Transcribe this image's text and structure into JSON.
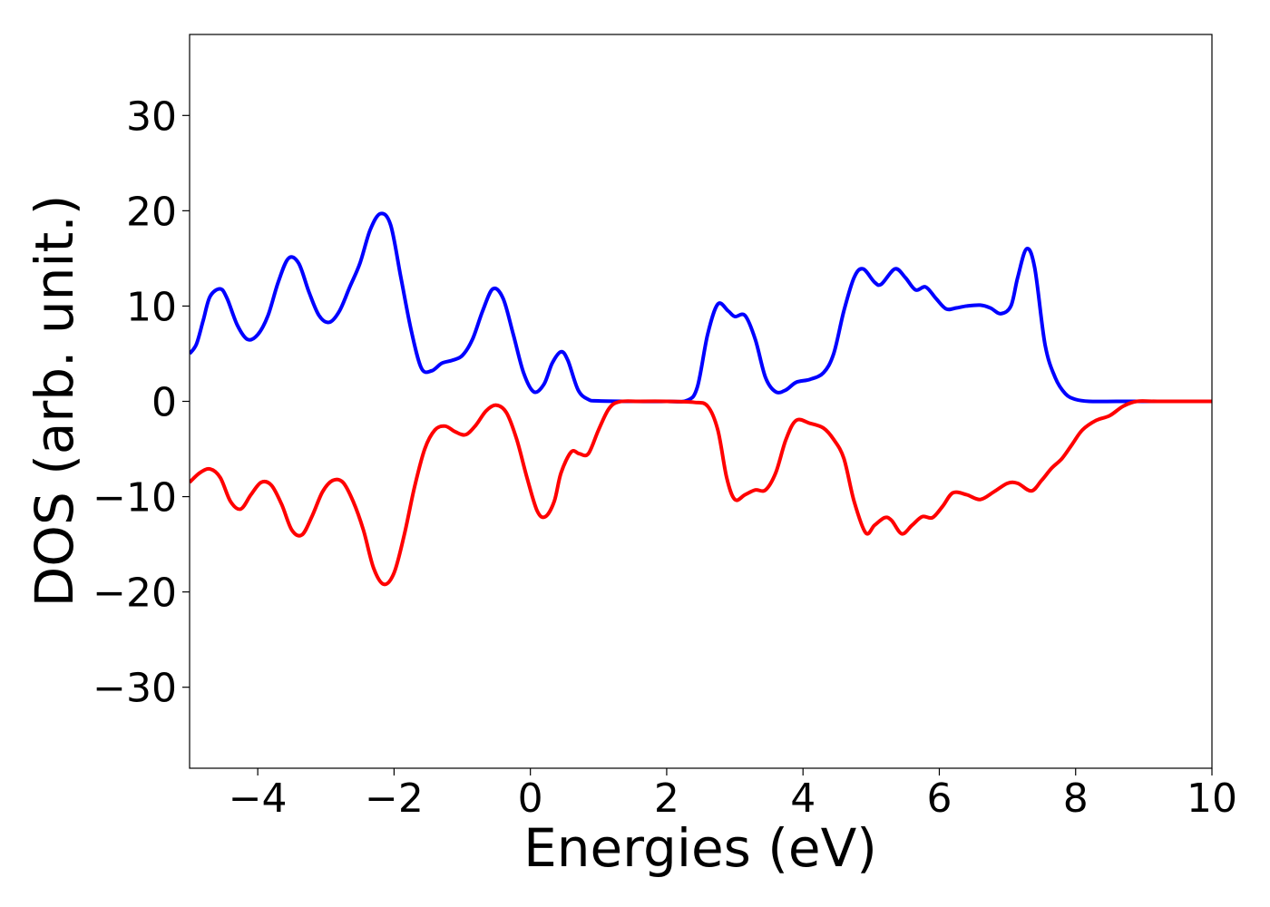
{
  "chart_data": {
    "type": "line",
    "title": "",
    "xlabel": "Energies (eV)",
    "ylabel": "DOS (arb. unit.)",
    "xlim": [
      -5,
      10
    ],
    "ylim": [
      -38.5,
      38.5
    ],
    "xticks": [
      -4,
      -2,
      0,
      2,
      4,
      6,
      8,
      10
    ],
    "xtick_labels": [
      "−4",
      "−2",
      "0",
      "2",
      "4",
      "6",
      "8",
      "10"
    ],
    "yticks": [
      -30,
      -20,
      -10,
      0,
      10,
      20,
      30
    ],
    "ytick_labels": [
      "−30",
      "−20",
      "−10",
      "0",
      "10",
      "20",
      "30"
    ],
    "grid": false,
    "legend": "none",
    "series": [
      {
        "color": "#0000ff",
        "points": [
          [
            -5.0,
            5.0
          ],
          [
            -4.9,
            6.0
          ],
          [
            -4.8,
            8.5
          ],
          [
            -4.7,
            11.0
          ],
          [
            -4.55,
            11.8
          ],
          [
            -4.45,
            10.8
          ],
          [
            -4.3,
            8.0
          ],
          [
            -4.15,
            6.5
          ],
          [
            -4.0,
            7.0
          ],
          [
            -3.85,
            9.0
          ],
          [
            -3.7,
            12.5
          ],
          [
            -3.55,
            15.0
          ],
          [
            -3.4,
            14.5
          ],
          [
            -3.25,
            11.5
          ],
          [
            -3.1,
            9.0
          ],
          [
            -2.95,
            8.3
          ],
          [
            -2.8,
            9.5
          ],
          [
            -2.65,
            12.0
          ],
          [
            -2.5,
            14.5
          ],
          [
            -2.35,
            18.0
          ],
          [
            -2.2,
            19.7
          ],
          [
            -2.05,
            18.5
          ],
          [
            -1.9,
            13.0
          ],
          [
            -1.75,
            7.5
          ],
          [
            -1.6,
            3.5
          ],
          [
            -1.45,
            3.2
          ],
          [
            -1.3,
            4.0
          ],
          [
            -1.15,
            4.3
          ],
          [
            -1.0,
            4.8
          ],
          [
            -0.85,
            6.5
          ],
          [
            -0.7,
            9.5
          ],
          [
            -0.55,
            11.8
          ],
          [
            -0.4,
            10.8
          ],
          [
            -0.25,
            7.0
          ],
          [
            -0.1,
            3.0
          ],
          [
            0.05,
            1.0
          ],
          [
            0.2,
            1.8
          ],
          [
            0.32,
            4.0
          ],
          [
            0.45,
            5.2
          ],
          [
            0.55,
            4.3
          ],
          [
            0.7,
            1.2
          ],
          [
            0.85,
            0.2
          ],
          [
            1.0,
            0.05
          ],
          [
            1.5,
            0.0
          ],
          [
            2.0,
            0.0
          ],
          [
            2.3,
            0.1
          ],
          [
            2.45,
            1.5
          ],
          [
            2.6,
            7.0
          ],
          [
            2.75,
            10.2
          ],
          [
            2.9,
            9.5
          ],
          [
            3.0,
            8.9
          ],
          [
            3.15,
            9.0
          ],
          [
            3.3,
            6.5
          ],
          [
            3.45,
            2.5
          ],
          [
            3.6,
            1.0
          ],
          [
            3.75,
            1.2
          ],
          [
            3.9,
            2.0
          ],
          [
            4.1,
            2.3
          ],
          [
            4.3,
            3.0
          ],
          [
            4.45,
            5.0
          ],
          [
            4.6,
            9.5
          ],
          [
            4.75,
            13.0
          ],
          [
            4.88,
            13.9
          ],
          [
            5.05,
            12.5
          ],
          [
            5.15,
            12.3
          ],
          [
            5.35,
            13.9
          ],
          [
            5.5,
            13.0
          ],
          [
            5.65,
            11.7
          ],
          [
            5.8,
            12.0
          ],
          [
            5.95,
            10.8
          ],
          [
            6.1,
            9.7
          ],
          [
            6.25,
            9.8
          ],
          [
            6.4,
            10.0
          ],
          [
            6.6,
            10.1
          ],
          [
            6.75,
            9.8
          ],
          [
            6.9,
            9.2
          ],
          [
            7.05,
            10.0
          ],
          [
            7.15,
            13.0
          ],
          [
            7.28,
            16.0
          ],
          [
            7.4,
            14.0
          ],
          [
            7.55,
            6.0
          ],
          [
            7.7,
            2.5
          ],
          [
            7.85,
            0.8
          ],
          [
            8.0,
            0.2
          ],
          [
            8.2,
            0.0
          ],
          [
            8.6,
            0.0
          ],
          [
            9.0,
            0.0
          ],
          [
            10.0,
            0.0
          ]
        ]
      },
      {
        "color": "#ff0000",
        "points": [
          [
            -5.0,
            -8.5
          ],
          [
            -4.85,
            -7.5
          ],
          [
            -4.7,
            -7.1
          ],
          [
            -4.55,
            -8.0
          ],
          [
            -4.4,
            -10.5
          ],
          [
            -4.25,
            -11.3
          ],
          [
            -4.1,
            -9.8
          ],
          [
            -3.95,
            -8.5
          ],
          [
            -3.8,
            -8.8
          ],
          [
            -3.65,
            -10.8
          ],
          [
            -3.5,
            -13.5
          ],
          [
            -3.35,
            -14.0
          ],
          [
            -3.2,
            -12.0
          ],
          [
            -3.05,
            -9.5
          ],
          [
            -2.9,
            -8.3
          ],
          [
            -2.75,
            -8.5
          ],
          [
            -2.6,
            -10.5
          ],
          [
            -2.45,
            -13.5
          ],
          [
            -2.3,
            -17.5
          ],
          [
            -2.15,
            -19.2
          ],
          [
            -2.0,
            -18.0
          ],
          [
            -1.85,
            -14.0
          ],
          [
            -1.7,
            -9.0
          ],
          [
            -1.55,
            -5.0
          ],
          [
            -1.4,
            -3.0
          ],
          [
            -1.25,
            -2.6
          ],
          [
            -1.1,
            -3.2
          ],
          [
            -0.95,
            -3.5
          ],
          [
            -0.8,
            -2.5
          ],
          [
            -0.65,
            -1.0
          ],
          [
            -0.5,
            -0.4
          ],
          [
            -0.35,
            -1.2
          ],
          [
            -0.2,
            -4.0
          ],
          [
            -0.05,
            -8.0
          ],
          [
            0.1,
            -11.5
          ],
          [
            0.22,
            -12.1
          ],
          [
            0.35,
            -10.5
          ],
          [
            0.45,
            -7.5
          ],
          [
            0.6,
            -5.3
          ],
          [
            0.72,
            -5.5
          ],
          [
            0.85,
            -5.5
          ],
          [
            1.0,
            -3.0
          ],
          [
            1.15,
            -0.8
          ],
          [
            1.3,
            -0.05
          ],
          [
            1.6,
            0.0
          ],
          [
            2.0,
            0.0
          ],
          [
            2.4,
            -0.1
          ],
          [
            2.6,
            -0.5
          ],
          [
            2.75,
            -3.0
          ],
          [
            2.88,
            -8.0
          ],
          [
            3.0,
            -10.3
          ],
          [
            3.15,
            -9.8
          ],
          [
            3.3,
            -9.3
          ],
          [
            3.45,
            -9.3
          ],
          [
            3.6,
            -7.5
          ],
          [
            3.75,
            -4.0
          ],
          [
            3.9,
            -2.0
          ],
          [
            4.1,
            -2.3
          ],
          [
            4.3,
            -2.8
          ],
          [
            4.45,
            -4.0
          ],
          [
            4.6,
            -6.0
          ],
          [
            4.75,
            -10.5
          ],
          [
            4.92,
            -13.8
          ],
          [
            5.05,
            -13.0
          ],
          [
            5.2,
            -12.2
          ],
          [
            5.3,
            -12.5
          ],
          [
            5.45,
            -13.9
          ],
          [
            5.6,
            -13.0
          ],
          [
            5.75,
            -12.1
          ],
          [
            5.9,
            -12.2
          ],
          [
            6.05,
            -11.0
          ],
          [
            6.2,
            -9.6
          ],
          [
            6.4,
            -9.8
          ],
          [
            6.6,
            -10.3
          ],
          [
            6.8,
            -9.5
          ],
          [
            7.0,
            -8.6
          ],
          [
            7.15,
            -8.6
          ],
          [
            7.35,
            -9.4
          ],
          [
            7.5,
            -8.3
          ],
          [
            7.65,
            -7.0
          ],
          [
            7.8,
            -6.0
          ],
          [
            7.95,
            -4.5
          ],
          [
            8.1,
            -3.0
          ],
          [
            8.3,
            -2.0
          ],
          [
            8.5,
            -1.5
          ],
          [
            8.7,
            -0.5
          ],
          [
            8.9,
            0.0
          ],
          [
            9.2,
            0.0
          ],
          [
            10.0,
            0.0
          ]
        ]
      }
    ]
  }
}
